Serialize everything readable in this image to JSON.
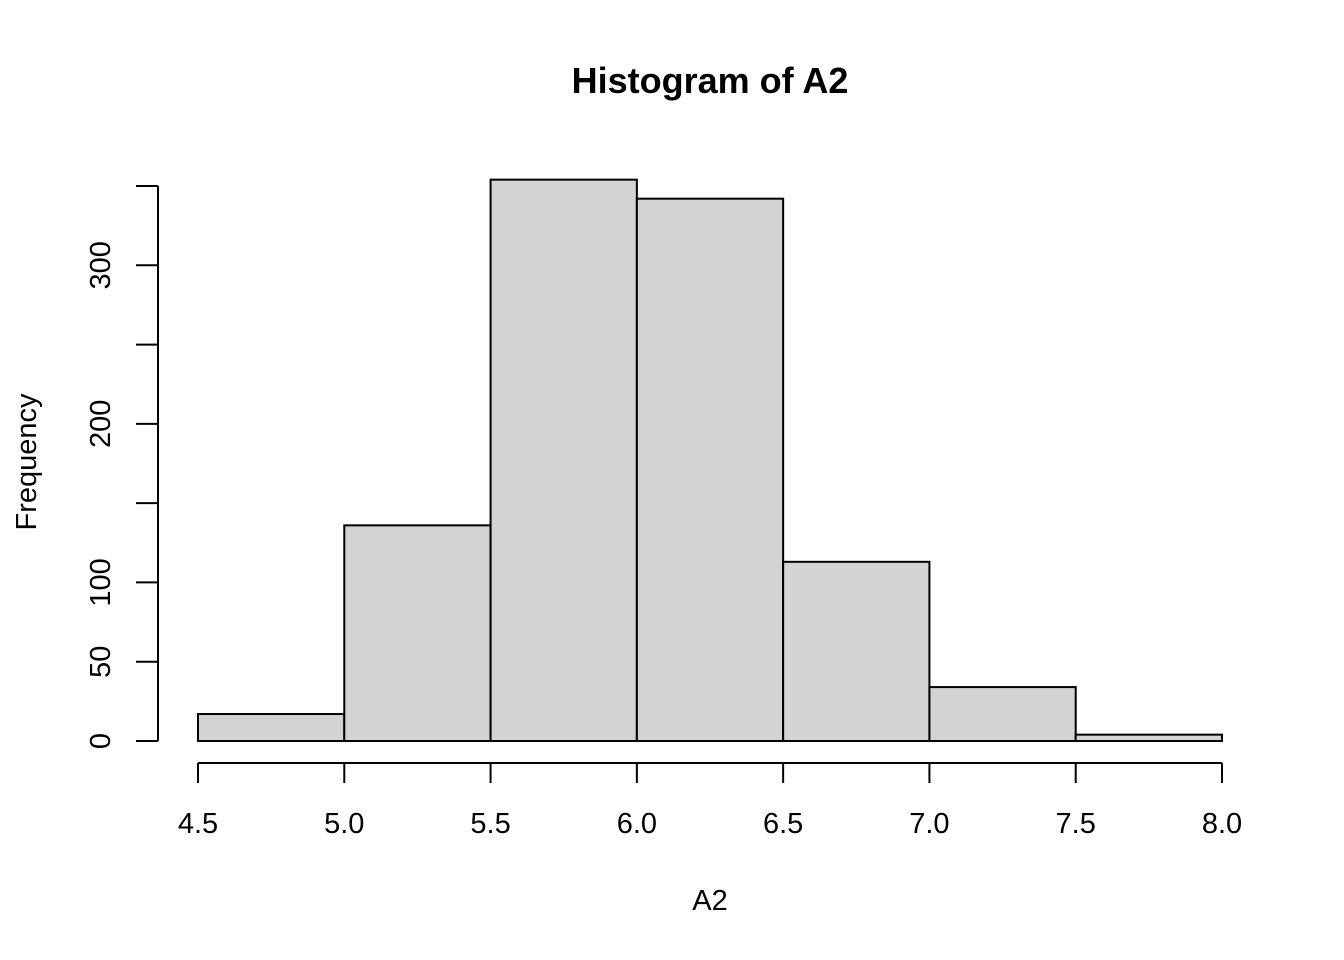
{
  "chart_data": {
    "type": "bar",
    "subtype": "histogram",
    "title": "Histogram of A2",
    "xlabel": "A2",
    "ylabel": "Frequency",
    "bins": [
      {
        "start": 4.5,
        "end": 5.0,
        "count": 17
      },
      {
        "start": 5.0,
        "end": 5.5,
        "count": 136
      },
      {
        "start": 5.5,
        "end": 6.0,
        "count": 354
      },
      {
        "start": 6.0,
        "end": 6.5,
        "count": 342
      },
      {
        "start": 6.5,
        "end": 7.0,
        "count": 113
      },
      {
        "start": 7.0,
        "end": 7.5,
        "count": 34
      },
      {
        "start": 7.5,
        "end": 8.0,
        "count": 4
      }
    ],
    "xlim": [
      4.5,
      8.0
    ],
    "ylim": [
      0,
      350
    ],
    "x_ticks": [
      "4.5",
      "5.0",
      "5.5",
      "6.0",
      "6.5",
      "7.0",
      "7.5",
      "8.0"
    ],
    "y_ticks": [
      0,
      50,
      100,
      150,
      200,
      250,
      300,
      350
    ],
    "y_tick_labels": [
      "0",
      "50",
      "100",
      "",
      "200",
      "",
      "300",
      ""
    ],
    "bar_color": "#d3d3d3",
    "edge_color": "#000000",
    "grid": false,
    "legend": "none"
  }
}
